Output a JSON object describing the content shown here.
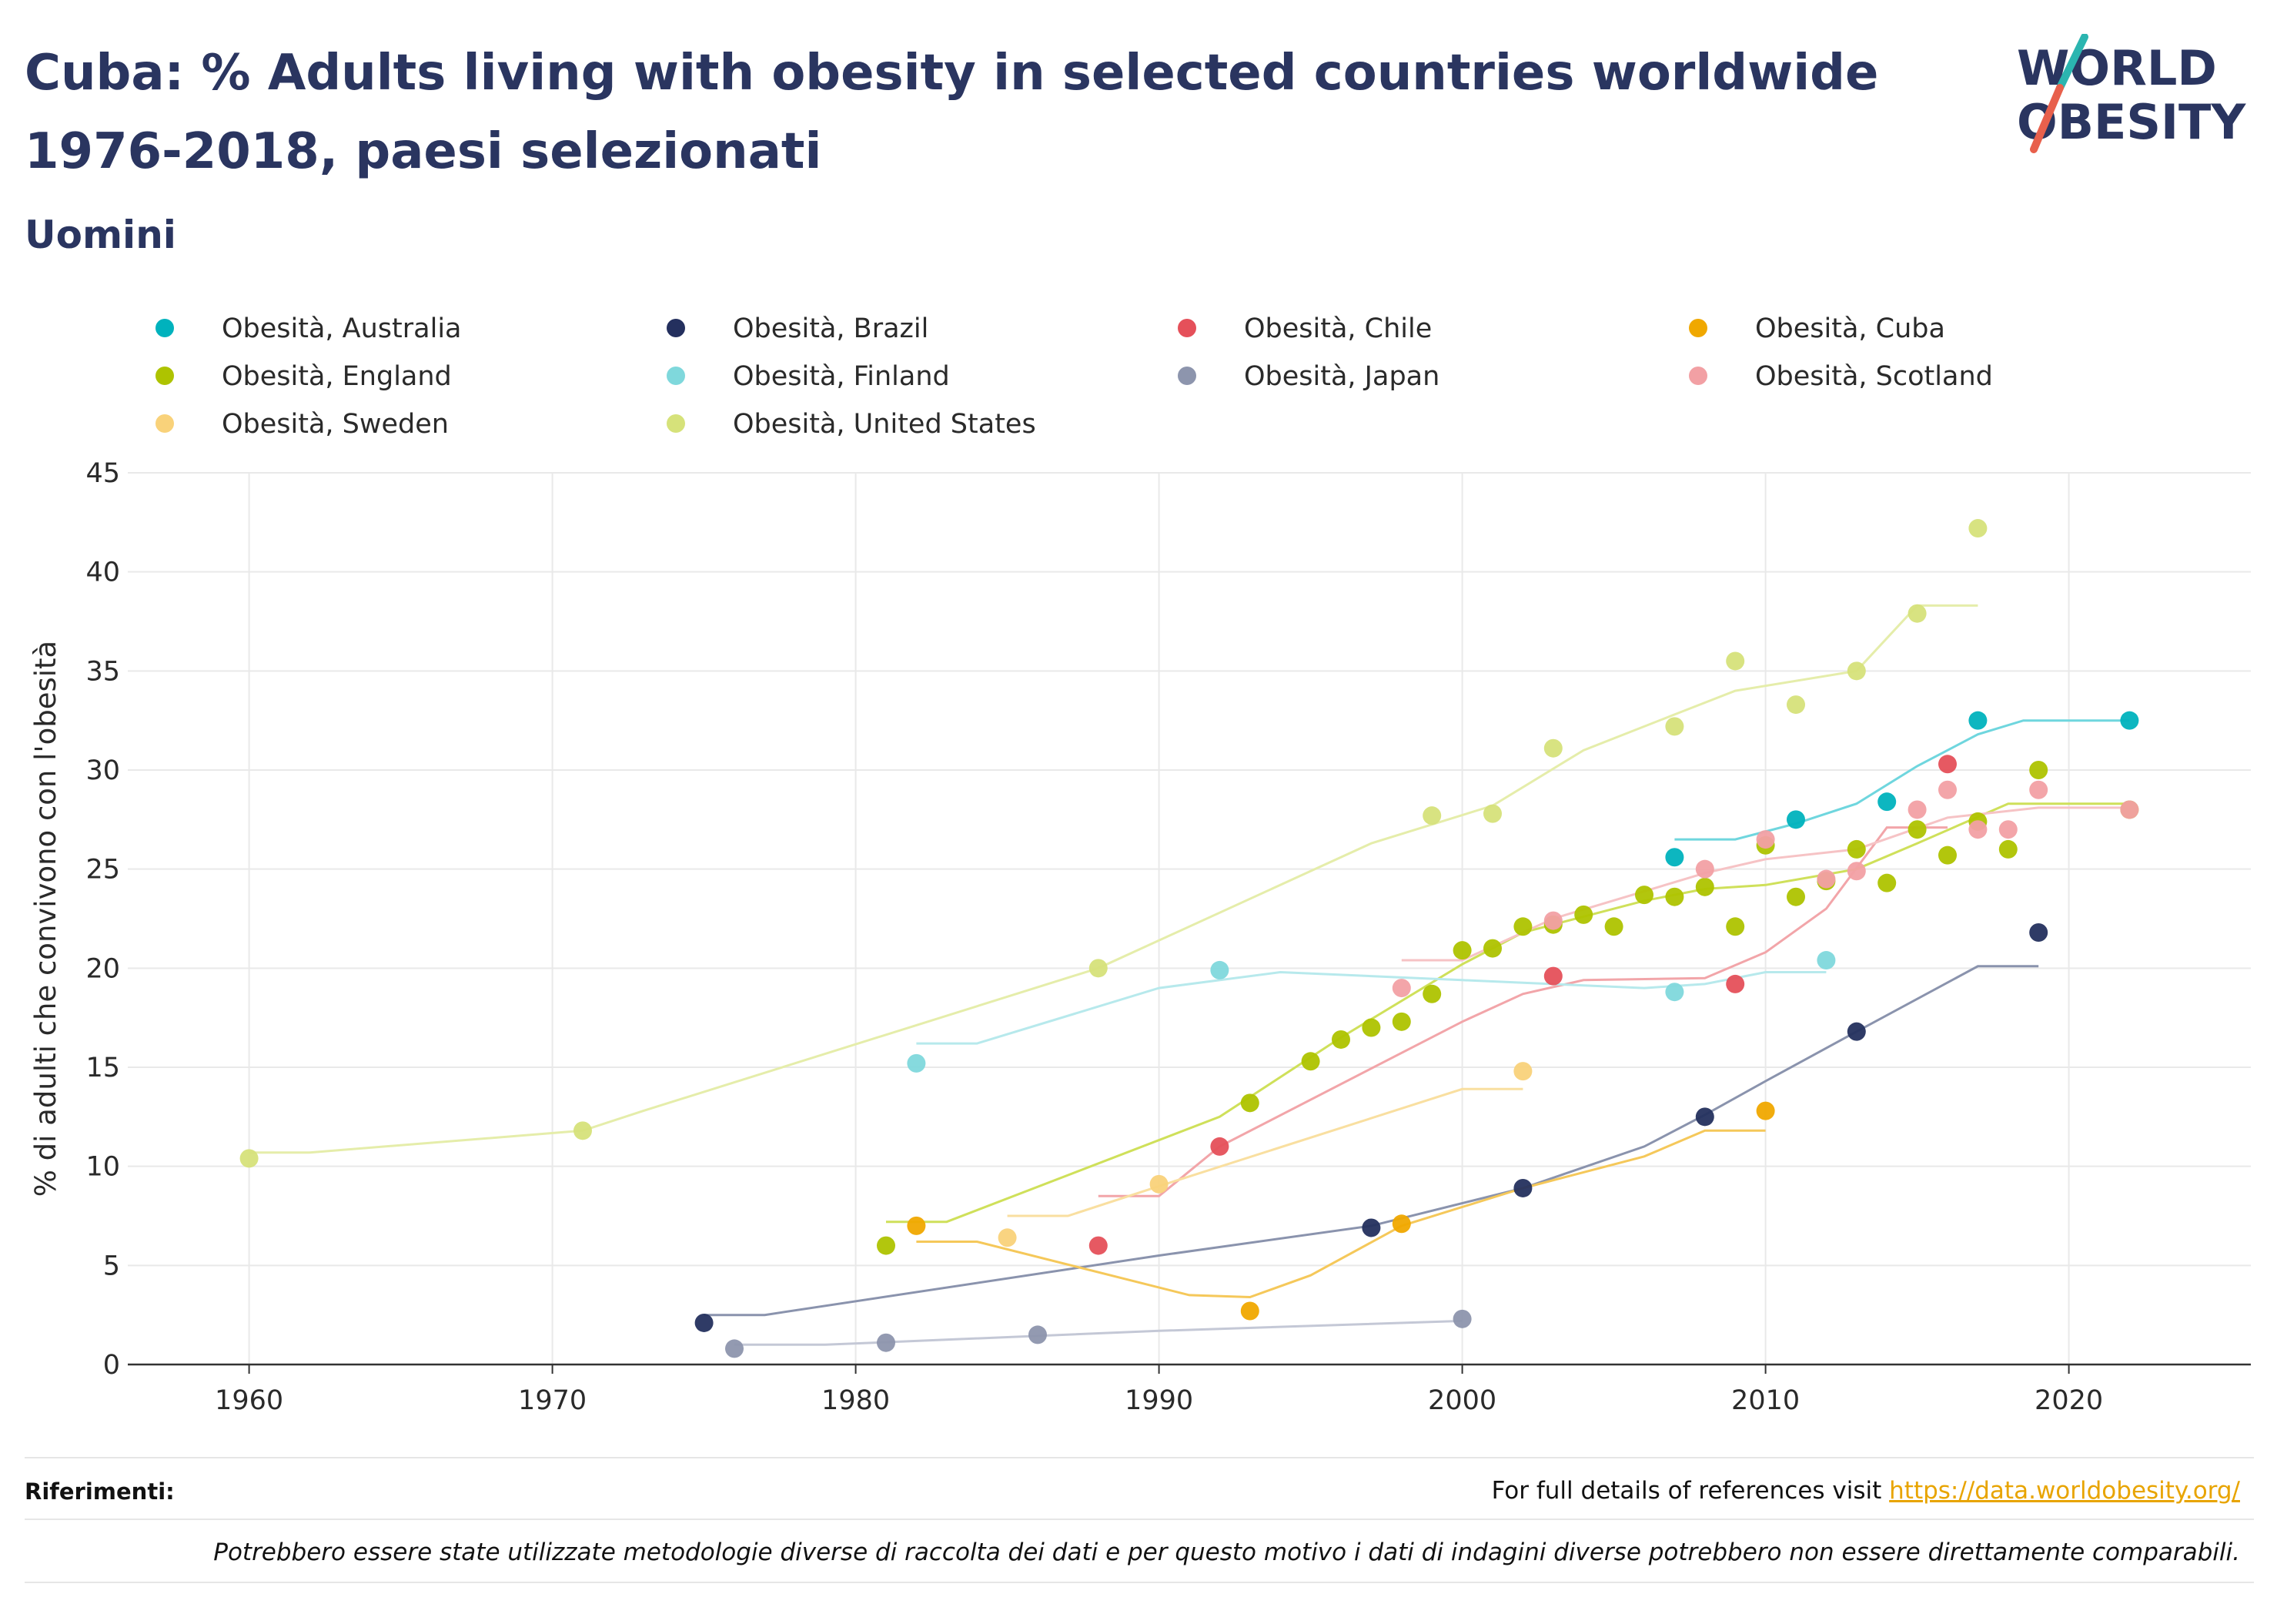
{
  "header": {
    "title": "Cuba: % Adults living with obesity in selected countries worldwide 1976-2018, paesi selezionati",
    "subtitle": "Uomini"
  },
  "logo": {
    "line1": "WORLD",
    "line2": "OBESITY",
    "slash_color_top": "#2bb5b0",
    "slash_color_bottom": "#e8604c"
  },
  "footer": {
    "references_label": "Riferimenti:",
    "references_text": "For full details of references visit ",
    "references_link": "https://data.worldobesity.org/",
    "note": "Potrebbero essere state utilizzate metodologie diverse di raccolta dei dati e per questo motivo i dati di indagini diverse potrebbero non essere direttamente comparabili."
  },
  "chart_data": {
    "type": "scatter",
    "title": "Cuba: % Adults living with obesity in selected countries worldwide 1976-2018, paesi selezionati",
    "subtitle": "Uomini",
    "xlabel": "",
    "ylabel": "% di adulti che convivono con l'obesità",
    "xlim": [
      1956,
      2026
    ],
    "ylim": [
      0,
      45
    ],
    "xticks": [
      1960,
      1970,
      1980,
      1990,
      2000,
      2010,
      2020
    ],
    "yticks": [
      0,
      5,
      10,
      15,
      20,
      25,
      30,
      35,
      40,
      45
    ],
    "grid": true,
    "legend_position": "top",
    "series": [
      {
        "name": "Obesità, Australia",
        "color": "#00b2bd",
        "line_color": "#6fd6de",
        "points": [
          [
            2007,
            25.6
          ],
          [
            2011,
            27.5
          ],
          [
            2014,
            28.4
          ],
          [
            2017,
            32.5
          ],
          [
            2022,
            32.5
          ]
        ],
        "trend": [
          [
            2007,
            26.5
          ],
          [
            2009,
            26.5
          ],
          [
            2011,
            27.3
          ],
          [
            2013,
            28.3
          ],
          [
            2015,
            30.2
          ],
          [
            2017,
            31.8
          ],
          [
            2018.5,
            32.5
          ],
          [
            2022,
            32.5
          ]
        ]
      },
      {
        "name": "Obesità, Brazil",
        "color": "#24305e",
        "line_color": "#8a93ad",
        "points": [
          [
            1975,
            2.1
          ],
          [
            1997,
            6.9
          ],
          [
            2002,
            8.9
          ],
          [
            2008,
            12.5
          ],
          [
            2013,
            16.8
          ],
          [
            2019,
            21.8
          ]
        ],
        "trend": [
          [
            1975,
            2.5
          ],
          [
            1977,
            2.5
          ],
          [
            1990,
            5.5
          ],
          [
            1997,
            7.0
          ],
          [
            2002,
            8.9
          ],
          [
            2006,
            11.0
          ],
          [
            2008,
            12.6
          ],
          [
            2010,
            14.3
          ],
          [
            2013,
            16.8
          ],
          [
            2017,
            20.1
          ],
          [
            2019,
            20.1
          ]
        ]
      },
      {
        "name": "Obesità, Chile",
        "color": "#e5505a",
        "line_color": "#f2a5a9",
        "points": [
          [
            1988,
            6.0
          ],
          [
            1992,
            11.0
          ],
          [
            2003,
            19.6
          ],
          [
            2009,
            19.2
          ],
          [
            2016,
            30.3
          ]
        ],
        "trend": [
          [
            1988,
            8.5
          ],
          [
            1990,
            8.5
          ],
          [
            1992,
            11.0
          ],
          [
            2000,
            17.3
          ],
          [
            2002,
            18.7
          ],
          [
            2004,
            19.4
          ],
          [
            2008,
            19.5
          ],
          [
            2010,
            20.8
          ],
          [
            2012,
            23.0
          ],
          [
            2014,
            27.1
          ],
          [
            2016,
            27.1
          ]
        ]
      },
      {
        "name": "Obesità, Cuba",
        "color": "#f0a800",
        "line_color": "#f5c85a",
        "points": [
          [
            1982,
            7.0
          ],
          [
            1993,
            2.7
          ],
          [
            1998,
            7.1
          ],
          [
            2010,
            12.8
          ]
        ],
        "trend": [
          [
            1982,
            6.2
          ],
          [
            1984,
            6.2
          ],
          [
            1991,
            3.5
          ],
          [
            1993,
            3.4
          ],
          [
            1995,
            4.5
          ],
          [
            1998,
            7.0
          ],
          [
            2002,
            8.9
          ],
          [
            2006,
            10.5
          ],
          [
            2008,
            11.8
          ],
          [
            2010,
            11.8
          ]
        ]
      },
      {
        "name": "Obesità, England",
        "color": "#aec300",
        "line_color": "#cfe05a",
        "points": [
          [
            1981,
            6.0
          ],
          [
            1993,
            13.2
          ],
          [
            1995,
            15.3
          ],
          [
            1996,
            16.4
          ],
          [
            1997,
            17.0
          ],
          [
            1998,
            17.3
          ],
          [
            1999,
            18.7
          ],
          [
            2000,
            20.9
          ],
          [
            2001,
            21.0
          ],
          [
            2002,
            22.1
          ],
          [
            2003,
            22.2
          ],
          [
            2004,
            22.7
          ],
          [
            2005,
            22.1
          ],
          [
            2006,
            23.7
          ],
          [
            2007,
            23.6
          ],
          [
            2008,
            24.1
          ],
          [
            2009,
            22.1
          ],
          [
            2010,
            26.2
          ],
          [
            2011,
            23.6
          ],
          [
            2012,
            24.4
          ],
          [
            2013,
            26.0
          ],
          [
            2014,
            24.3
          ],
          [
            2015,
            27.0
          ],
          [
            2016,
            25.7
          ],
          [
            2017,
            27.4
          ],
          [
            2018,
            26.0
          ],
          [
            2019,
            30.0
          ],
          [
            2022,
            28.0
          ]
        ],
        "trend": [
          [
            1981,
            7.2
          ],
          [
            1983,
            7.2
          ],
          [
            1992,
            12.5
          ],
          [
            1996,
            16.5
          ],
          [
            2000,
            20.2
          ],
          [
            2002,
            21.8
          ],
          [
            2006,
            23.4
          ],
          [
            2008,
            24.0
          ],
          [
            2010,
            24.2
          ],
          [
            2013,
            25.0
          ],
          [
            2015,
            26.3
          ],
          [
            2018,
            28.3
          ],
          [
            2022,
            28.3
          ]
        ]
      },
      {
        "name": "Obesità, Finland",
        "color": "#7fd8dc",
        "line_color": "#b7e9ec",
        "points": [
          [
            1982,
            15.2
          ],
          [
            1992,
            19.9
          ],
          [
            2007,
            18.8
          ],
          [
            2012,
            20.4
          ]
        ],
        "trend": [
          [
            1982,
            16.2
          ],
          [
            1984,
            16.2
          ],
          [
            1990,
            19.0
          ],
          [
            1994,
            19.8
          ],
          [
            2000,
            19.4
          ],
          [
            2006,
            19.0
          ],
          [
            2008,
            19.2
          ],
          [
            2010,
            19.8
          ],
          [
            2012,
            19.8
          ]
        ]
      },
      {
        "name": "Obesità, Japan",
        "color": "#8d95ad",
        "line_color": "#c4c8d6",
        "points": [
          [
            1976,
            0.8
          ],
          [
            1981,
            1.1
          ],
          [
            1986,
            1.5
          ],
          [
            2000,
            2.3
          ]
        ],
        "trend": [
          [
            1976,
            1.0
          ],
          [
            1979,
            1.0
          ],
          [
            1990,
            1.7
          ],
          [
            2000,
            2.2
          ]
        ]
      },
      {
        "name": "Obesità, Scotland",
        "color": "#f2a0a4",
        "line_color": "#f6c3c5",
        "points": [
          [
            1998,
            19.0
          ],
          [
            2003,
            22.4
          ],
          [
            2008,
            25.0
          ],
          [
            2010,
            26.5
          ],
          [
            2012,
            24.5
          ],
          [
            2013,
            24.9
          ],
          [
            2015,
            28.0
          ],
          [
            2016,
            29.0
          ],
          [
            2017,
            27.0
          ],
          [
            2018,
            27.0
          ],
          [
            2019,
            29.0
          ],
          [
            2022,
            28.0
          ]
        ],
        "trend": [
          [
            1998,
            20.4
          ],
          [
            2000,
            20.4
          ],
          [
            2003,
            22.5
          ],
          [
            2008,
            24.8
          ],
          [
            2010,
            25.5
          ],
          [
            2013,
            26.0
          ],
          [
            2016,
            27.6
          ],
          [
            2019,
            28.1
          ],
          [
            2022,
            28.1
          ]
        ]
      },
      {
        "name": "Obesità, Sweden",
        "color": "#f9d27a",
        "line_color": "#f9dfa0",
        "points": [
          [
            1985,
            6.4
          ],
          [
            1990,
            9.1
          ],
          [
            2002,
            14.8
          ]
        ],
        "trend": [
          [
            1985,
            7.5
          ],
          [
            1987,
            7.5
          ],
          [
            1990,
            9.0
          ],
          [
            2000,
            13.9
          ],
          [
            2002,
            13.9
          ]
        ]
      },
      {
        "name": "Obesità, United States",
        "color": "#d6e27a",
        "line_color": "#e5edaa",
        "points": [
          [
            1960,
            10.4
          ],
          [
            1971,
            11.8
          ],
          [
            1988,
            20.0
          ],
          [
            1999,
            27.7
          ],
          [
            2001,
            27.8
          ],
          [
            2003,
            31.1
          ],
          [
            2007,
            32.2
          ],
          [
            2009,
            35.5
          ],
          [
            2011,
            33.3
          ],
          [
            2013,
            35.0
          ],
          [
            2015,
            37.9
          ],
          [
            2017,
            42.2
          ]
        ],
        "trend": [
          [
            1960,
            10.7
          ],
          [
            1962,
            10.7
          ],
          [
            1971,
            11.8
          ],
          [
            1973,
            12.8
          ],
          [
            1988,
            20.0
          ],
          [
            1997,
            26.3
          ],
          [
            2001,
            28.2
          ],
          [
            2004,
            31.0
          ],
          [
            2007,
            32.8
          ],
          [
            2009,
            34.0
          ],
          [
            2013,
            35.0
          ],
          [
            2015,
            38.3
          ],
          [
            2017,
            38.3
          ]
        ]
      }
    ]
  }
}
